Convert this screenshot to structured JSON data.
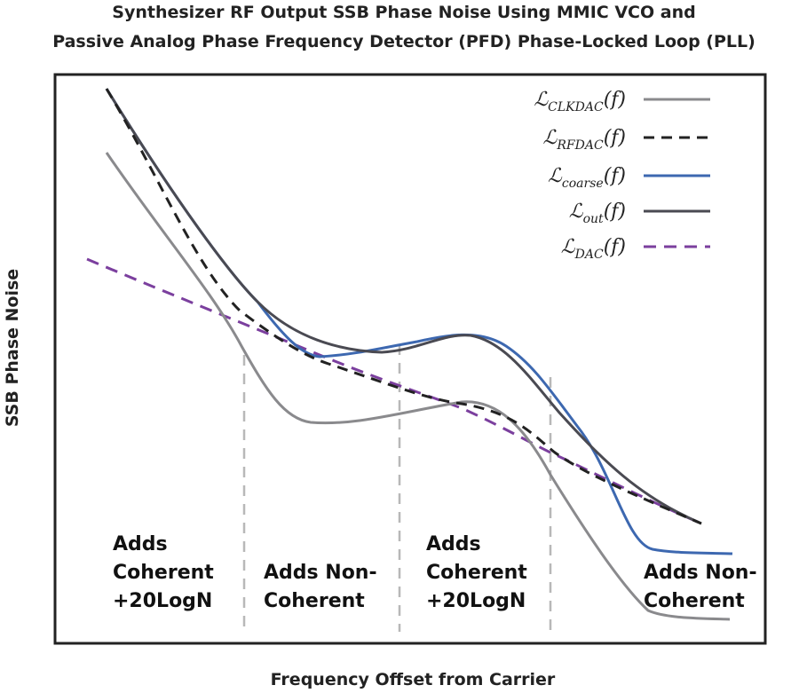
{
  "title": [
    "Synthesizer RF Output SSB Phase Noise Using MMIC VCO and",
    "Passive Analog Phase Frequency Detector (PFD) Phase-Locked Loop (PLL)"
  ],
  "y_axis_label": "SSB Phase Noise",
  "x_axis_label": "Frequency Offset from Carrier",
  "legend": [
    {
      "symbol": "ℒ",
      "subscript": "CLKDAC",
      "argument": "(f)"
    },
    {
      "symbol": "ℒ",
      "subscript": "RFDAC",
      "argument": "(f)"
    },
    {
      "symbol": "ℒ",
      "subscript": "coarse",
      "argument": "(f)"
    },
    {
      "symbol": "ℒ",
      "subscript": "out",
      "argument": "(f)"
    },
    {
      "symbol": "ℒ",
      "subscript": "DAC",
      "argument": "(f)"
    }
  ],
  "regions": [
    [
      "Adds",
      "Coherent",
      "+20LogN"
    ],
    [
      "Adds Non-",
      "Coherent"
    ],
    [
      "Adds",
      "Coherent",
      "+20LogN"
    ],
    [
      "Adds Non-",
      "Coherent"
    ]
  ]
}
